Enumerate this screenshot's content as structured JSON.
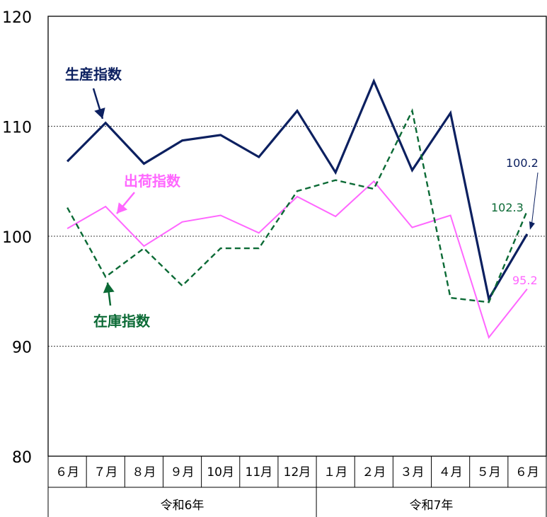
{
  "chart_data": {
    "type": "line",
    "categories": [
      "６月",
      "７月",
      "８月",
      "９月",
      "10月",
      "11月",
      "12月",
      "１月",
      "２月",
      "３月",
      "４月",
      "５月",
      "６月"
    ],
    "year_groups": [
      {
        "label": "令和6年",
        "count": 7
      },
      {
        "label": "令和7年",
        "count": 6
      }
    ],
    "ylim": [
      80,
      120
    ],
    "yticks": [
      80,
      90,
      100,
      110,
      120
    ],
    "grid": true,
    "series": [
      {
        "name": "生産指数",
        "color": "#0c2060",
        "style": "solid",
        "values": [
          106.8,
          110.3,
          106.6,
          108.7,
          109.2,
          107.2,
          111.4,
          105.8,
          114.1,
          106.0,
          111.2,
          94.3,
          100.2
        ],
        "end_label": "100.2"
      },
      {
        "name": "出荷指数",
        "color": "#ff66ff",
        "style": "solid",
        "values": [
          100.7,
          102.7,
          99.1,
          101.3,
          101.9,
          100.3,
          103.6,
          101.8,
          105.0,
          100.8,
          101.9,
          90.8,
          95.2
        ],
        "end_label": "95.2"
      },
      {
        "name": "在庫指数",
        "color": "#0b6a35",
        "style": "dashed",
        "values": [
          102.6,
          96.3,
          98.9,
          95.5,
          98.9,
          98.9,
          104.1,
          105.1,
          104.3,
          111.4,
          94.4,
          94.0,
          102.3
        ],
        "end_label": "102.3"
      }
    ]
  }
}
